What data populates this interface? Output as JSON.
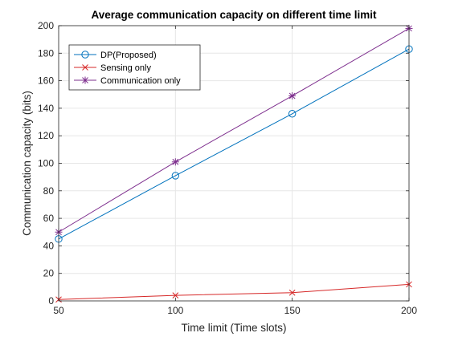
{
  "chart_data": {
    "type": "line",
    "title": "Average communication capacity on different time limit",
    "xlabel": "Time limit (Time slots)",
    "ylabel": "Communication capacity (bits)",
    "x": [
      50,
      100,
      150,
      200
    ],
    "xlim": [
      50,
      200
    ],
    "ylim": [
      0,
      200
    ],
    "xticks": [
      50,
      100,
      150,
      200
    ],
    "yticks": [
      0,
      20,
      40,
      60,
      80,
      100,
      120,
      140,
      160,
      180,
      200
    ],
    "grid": true,
    "legend_position": "top-left",
    "series": [
      {
        "name": "DP(Proposed)",
        "values": [
          45,
          91,
          136,
          183
        ],
        "color": "#0072BD",
        "marker": "circle"
      },
      {
        "name": "Sensing only",
        "values": [
          1,
          4,
          6,
          12
        ],
        "color": "#D62828",
        "marker": "x"
      },
      {
        "name": "Communication only",
        "values": [
          50,
          101,
          149,
          198
        ],
        "color": "#7E2F8E",
        "marker": "star"
      }
    ]
  }
}
